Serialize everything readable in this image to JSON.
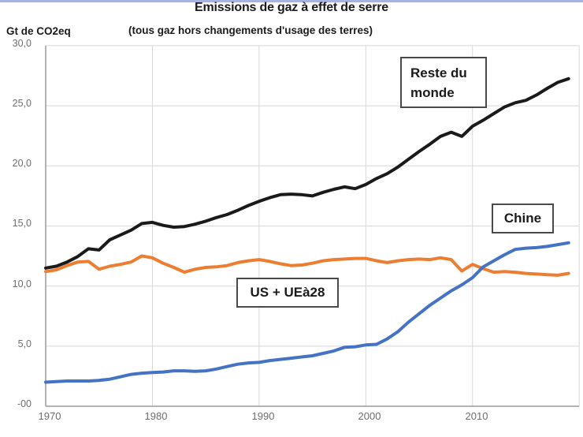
{
  "page": {
    "top_strip_color": "#a7b4e2"
  },
  "header": {
    "title": "Emissions de gaz à effet de serre",
    "subtitle": "(tous gaz hors changements d'usage des terres)",
    "y_axis_unit": "Gt de CO2eq"
  },
  "annotations": {
    "rest_of_world": "Reste du monde",
    "china": "Chine",
    "us_eu": "US + UEà28"
  },
  "chart_data": {
    "type": "line",
    "title": "Emissions de gaz à effet de serre",
    "subtitle": "(tous gaz hors changements d'usage des terres)",
    "ylabel": "Gt de CO2eq",
    "xlabel": "",
    "xlim": [
      1970,
      2020
    ],
    "ylim": [
      0,
      30
    ],
    "grid": true,
    "grid_color": "#d8d8d8",
    "axis_color": "#9b9b9b",
    "legend_position": "labels-in-boxes-on-plot",
    "y_tick_values": [
      30,
      25,
      20,
      15,
      10,
      5,
      0
    ],
    "y_tick_labels": [
      "30,0",
      "25,0",
      "20,0",
      "15,0",
      "10,0",
      "5,0",
      "-00"
    ],
    "x_tick_values": [
      1970,
      1980,
      1990,
      2000,
      2010
    ],
    "x_tick_labels": [
      "1970",
      "1980",
      "1990",
      "2000",
      "2010"
    ],
    "x": [
      1970,
      1971,
      1972,
      1973,
      1974,
      1975,
      1976,
      1977,
      1978,
      1979,
      1980,
      1981,
      1982,
      1983,
      1984,
      1985,
      1986,
      1987,
      1988,
      1989,
      1990,
      1991,
      1992,
      1993,
      1994,
      1995,
      1996,
      1997,
      1998,
      1999,
      2000,
      2001,
      2002,
      2003,
      2004,
      2005,
      2006,
      2007,
      2008,
      2009,
      2010,
      2011,
      2012,
      2013,
      2014,
      2015,
      2016,
      2017,
      2018,
      2019
    ],
    "series": [
      {
        "name": "US + UEà28",
        "color": "#ED7D31",
        "values": [
          11.2,
          11.35,
          11.7,
          12.0,
          12.05,
          11.4,
          11.65,
          11.8,
          12.0,
          12.5,
          12.35,
          11.9,
          11.55,
          11.15,
          11.4,
          11.55,
          11.6,
          11.7,
          11.95,
          12.1,
          12.2,
          12.05,
          11.85,
          11.7,
          11.75,
          11.9,
          12.1,
          12.2,
          12.25,
          12.3,
          12.3,
          12.1,
          11.95,
          12.1,
          12.2,
          12.25,
          12.2,
          12.35,
          12.2,
          11.25,
          11.8,
          11.45,
          11.15,
          11.2,
          11.15,
          11.05,
          11.0,
          10.95,
          10.9,
          11.05
        ]
      },
      {
        "name": "Chine",
        "color": "#4472C4",
        "values": [
          2.0,
          2.05,
          2.1,
          2.1,
          2.1,
          2.15,
          2.25,
          2.45,
          2.65,
          2.75,
          2.8,
          2.85,
          2.95,
          2.95,
          2.9,
          2.95,
          3.1,
          3.3,
          3.5,
          3.6,
          3.65,
          3.8,
          3.9,
          4.0,
          4.1,
          4.2,
          4.4,
          4.6,
          4.9,
          4.95,
          5.1,
          5.15,
          5.6,
          6.2,
          7.0,
          7.7,
          8.4,
          9.0,
          9.6,
          10.1,
          10.7,
          11.6,
          12.1,
          12.6,
          13.05,
          13.15,
          13.2,
          13.3,
          13.45,
          13.6
        ]
      },
      {
        "name": "Reste du monde",
        "color": "#1a1a1a",
        "values": [
          11.5,
          11.65,
          12.0,
          12.45,
          13.1,
          13.0,
          13.85,
          14.25,
          14.65,
          15.2,
          15.3,
          15.05,
          14.9,
          14.95,
          15.15,
          15.4,
          15.7,
          15.95,
          16.3,
          16.7,
          17.05,
          17.35,
          17.6,
          17.65,
          17.6,
          17.5,
          17.8,
          18.05,
          18.25,
          18.1,
          18.45,
          18.95,
          19.35,
          19.9,
          20.55,
          21.2,
          21.8,
          22.45,
          22.8,
          22.45,
          23.3,
          23.8,
          24.35,
          24.9,
          25.25,
          25.45,
          25.9,
          26.45,
          26.95,
          27.25
        ]
      }
    ]
  }
}
